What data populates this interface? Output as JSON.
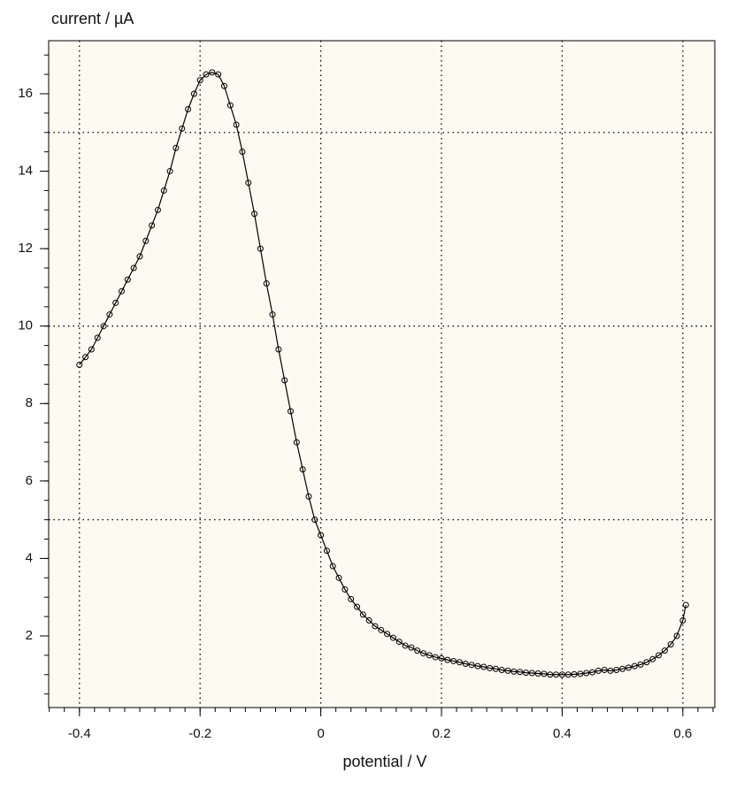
{
  "chart_data": {
    "type": "line",
    "title": "current / µA",
    "x_label": "potential / V",
    "x": [
      -0.4,
      -0.39,
      -0.38,
      -0.37,
      -0.36,
      -0.35,
      -0.34,
      -0.33,
      -0.32,
      -0.31,
      -0.3,
      -0.29,
      -0.28,
      -0.27,
      -0.26,
      -0.25,
      -0.24,
      -0.23,
      -0.22,
      -0.21,
      -0.2,
      -0.19,
      -0.18,
      -0.17,
      -0.16,
      -0.15,
      -0.14,
      -0.13,
      -0.12,
      -0.11,
      -0.1,
      -0.09,
      -0.08,
      -0.07,
      -0.06,
      -0.05,
      -0.04,
      -0.03,
      -0.02,
      -0.01,
      0.0,
      0.01,
      0.02,
      0.03,
      0.04,
      0.05,
      0.06,
      0.07,
      0.08,
      0.09,
      0.1,
      0.11,
      0.12,
      0.13,
      0.14,
      0.15,
      0.16,
      0.17,
      0.18,
      0.19,
      0.2,
      0.21,
      0.22,
      0.23,
      0.24,
      0.25,
      0.26,
      0.27,
      0.28,
      0.29,
      0.3,
      0.31,
      0.32,
      0.33,
      0.34,
      0.35,
      0.36,
      0.37,
      0.38,
      0.39,
      0.4,
      0.41,
      0.42,
      0.43,
      0.44,
      0.45,
      0.46,
      0.47,
      0.48,
      0.49,
      0.5,
      0.51,
      0.52,
      0.53,
      0.54,
      0.55,
      0.56,
      0.57,
      0.58,
      0.59,
      0.6,
      0.605
    ],
    "series": [
      {
        "name": "current",
        "color": "#000000",
        "values": [
          9.0,
          9.2,
          9.4,
          9.7,
          10.0,
          10.3,
          10.6,
          10.9,
          11.2,
          11.5,
          11.8,
          12.2,
          12.6,
          13.0,
          13.5,
          14.0,
          14.6,
          15.1,
          15.6,
          16.0,
          16.35,
          16.5,
          16.55,
          16.5,
          16.2,
          15.7,
          15.2,
          14.5,
          13.7,
          12.9,
          12.0,
          11.1,
          10.3,
          9.4,
          8.6,
          7.8,
          7.0,
          6.3,
          5.6,
          5.0,
          4.6,
          4.2,
          3.8,
          3.5,
          3.2,
          2.95,
          2.75,
          2.55,
          2.4,
          2.25,
          2.15,
          2.05,
          1.95,
          1.85,
          1.75,
          1.7,
          1.62,
          1.55,
          1.5,
          1.45,
          1.42,
          1.38,
          1.35,
          1.32,
          1.28,
          1.25,
          1.22,
          1.2,
          1.17,
          1.15,
          1.12,
          1.1,
          1.08,
          1.07,
          1.05,
          1.04,
          1.03,
          1.02,
          1.0,
          1.0,
          1.0,
          1.0,
          1.01,
          1.02,
          1.04,
          1.06,
          1.1,
          1.12,
          1.1,
          1.12,
          1.15,
          1.18,
          1.22,
          1.26,
          1.32,
          1.4,
          1.5,
          1.62,
          1.78,
          2.0,
          2.4,
          2.8
        ]
      }
    ],
    "xlim": [
      -0.451,
      0.653
    ],
    "ylim": [
      0.15,
      17.37
    ],
    "xticks": [
      -0.4,
      -0.2,
      0,
      0.2,
      0.4,
      0.6
    ],
    "yticks": [
      2,
      4,
      6,
      8,
      10,
      12,
      14,
      16
    ],
    "xgrid": [
      -0.4,
      -0.2,
      0,
      0.2,
      0.4,
      0.6
    ],
    "ygrid": [
      5,
      10,
      15
    ],
    "xminor_step": 0.025,
    "yminor_step": 0.5,
    "markers": true
  }
}
